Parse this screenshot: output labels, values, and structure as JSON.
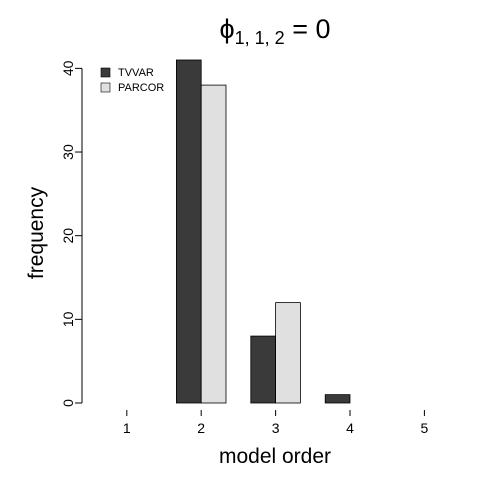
{
  "chart_data": {
    "type": "bar",
    "title": {
      "symbol": "ϕ",
      "subscript": "1, 1, 2",
      "suffix": " = 0"
    },
    "xlabel": "model order",
    "ylabel": "frequency",
    "categories": [
      "1",
      "2",
      "3",
      "4",
      "5"
    ],
    "series": [
      {
        "name": "TVVAR",
        "color": "#3a3a3a",
        "values": [
          0,
          41,
          8,
          1,
          0
        ]
      },
      {
        "name": "PARCOR",
        "color": "#e0e0e0",
        "values": [
          0,
          38,
          12,
          0,
          0
        ]
      }
    ],
    "yticks": [
      "0",
      "10",
      "20",
      "30",
      "40"
    ],
    "ylim": [
      0,
      41
    ],
    "grid": false,
    "legend_position": "top-left"
  }
}
